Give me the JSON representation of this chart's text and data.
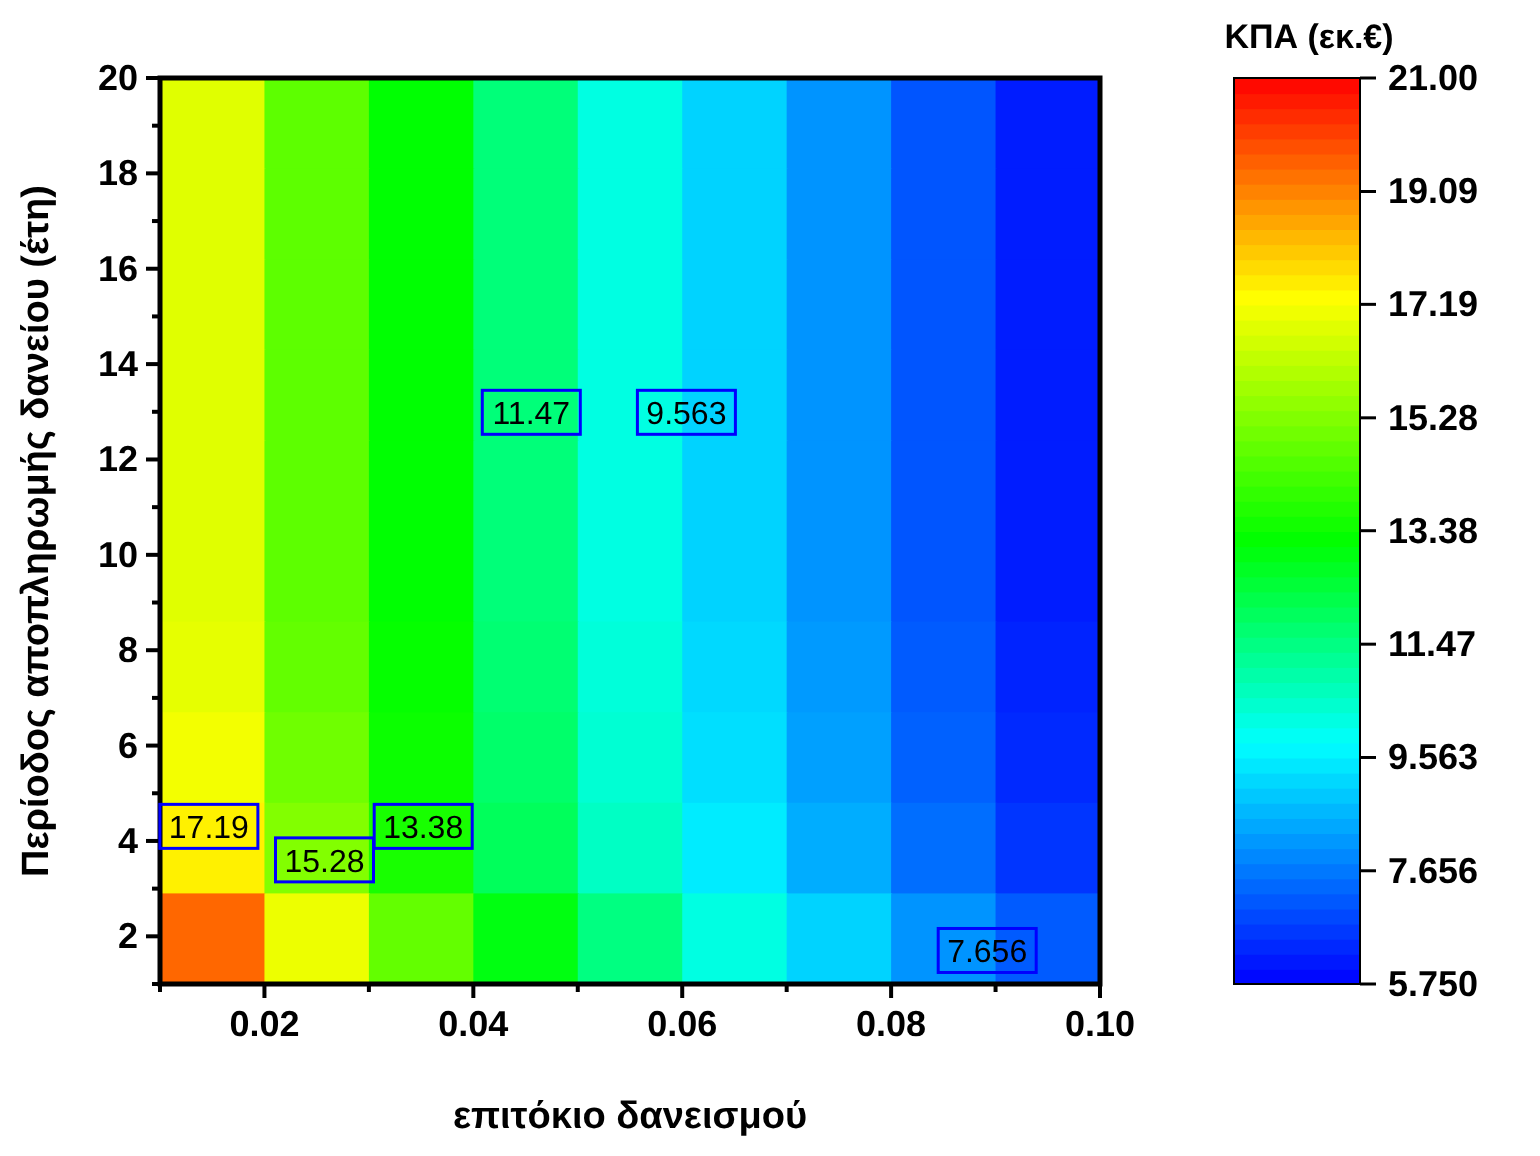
{
  "chart_data": {
    "type": "heatmap",
    "xlabel": "επιτόκιο δανεισμού",
    "ylabel": "Περίοδος αποπληρωμής δανείου (έτη)",
    "clabel": "ΚΠΑ (εκ.€)",
    "xlim": [
      0.01,
      0.1
    ],
    "ylim": [
      1,
      20
    ],
    "xticks": [
      {
        "value": 0.01,
        "label": null
      },
      0.02,
      {
        "value": 0.03,
        "label": null
      },
      0.04,
      {
        "value": 0.05,
        "label": null
      },
      0.06,
      {
        "value": 0.07,
        "label": null
      },
      0.08,
      {
        "value": 0.09,
        "label": null
      },
      {
        "value": 0.1,
        "label": "0.10"
      }
    ],
    "yticks": [
      {
        "value": 1,
        "label": null
      },
      2,
      {
        "value": 3,
        "label": null
      },
      4,
      {
        "value": 5,
        "label": null
      },
      6,
      {
        "value": 7,
        "label": null
      },
      8,
      {
        "value": 9,
        "label": null
      },
      10,
      {
        "value": 11,
        "label": null
      },
      12,
      {
        "value": 13,
        "label": null
      },
      14,
      {
        "value": 15,
        "label": null
      },
      16,
      {
        "value": 17,
        "label": null
      },
      18,
      {
        "value": 19,
        "label": null
      },
      20
    ],
    "cells": [
      [
        16.8,
        14.7,
        13.2,
        11.6,
        10.2,
        9.1,
        8.1,
        7.1,
        6.2
      ],
      [
        16.8,
        14.7,
        13.2,
        11.6,
        10.2,
        9.1,
        8.1,
        7.1,
        6.2
      ],
      [
        16.8,
        14.7,
        13.2,
        11.6,
        10.2,
        9.1,
        8.1,
        7.1,
        6.2
      ],
      [
        16.8,
        14.7,
        13.2,
        11.6,
        10.2,
        9.1,
        8.1,
        7.1,
        6.2
      ],
      [
        16.8,
        14.7,
        13.2,
        11.6,
        10.2,
        9.1,
        8.1,
        7.1,
        6.2
      ],
      [
        16.8,
        14.7,
        13.2,
        11.6,
        10.2,
        9.1,
        8.1,
        7.1,
        6.2
      ],
      [
        16.9,
        14.8,
        13.3,
        11.7,
        10.3,
        9.2,
        8.2,
        7.2,
        6.3
      ],
      [
        17.1,
        15.0,
        13.4,
        11.8,
        10.4,
        9.3,
        8.3,
        7.3,
        6.4
      ],
      [
        17.5,
        15.3,
        13.6,
        12.0,
        10.6,
        9.5,
        8.5,
        7.5,
        6.6
      ],
      [
        19.5,
        17.0,
        14.8,
        13.0,
        11.5,
        10.2,
        9.1,
        8.1,
        7.2
      ]
    ],
    "clim": [
      5.75,
      21
    ],
    "cticks": [
      {
        "value": 5.75,
        "label": "5.750"
      },
      7.656,
      9.563,
      11.47,
      13.38,
      15.28,
      17.19,
      19.09,
      {
        "value": 21,
        "label": "21.00"
      }
    ],
    "annotations": [
      "17.19",
      "15.28",
      "13.38",
      "11.47",
      "9.563",
      "7.656"
    ]
  }
}
